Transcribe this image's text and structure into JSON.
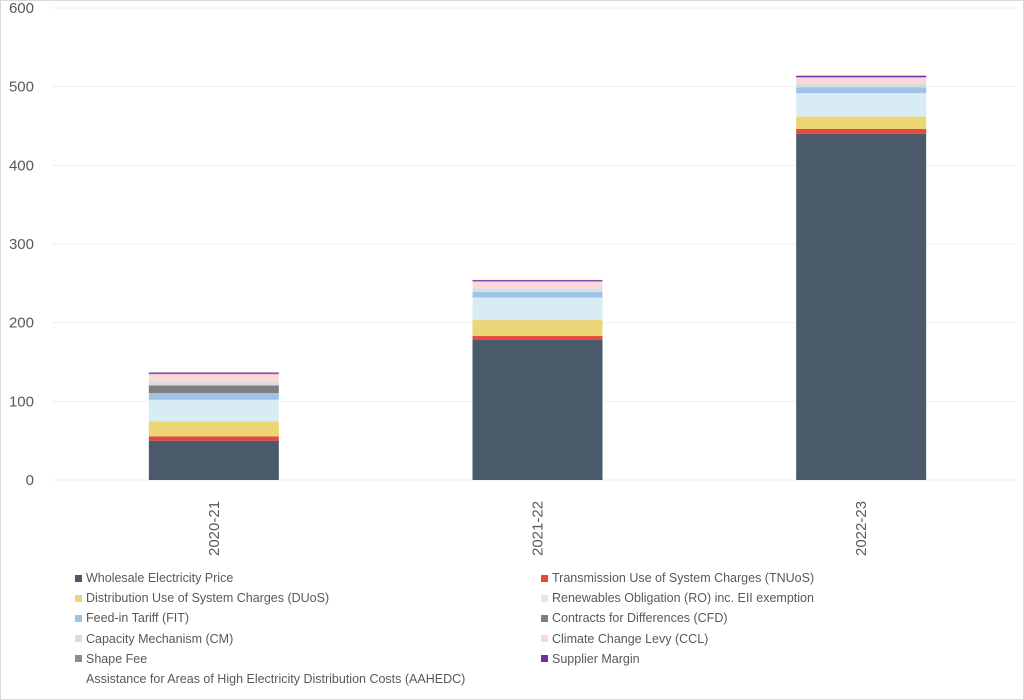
{
  "chart_data": {
    "type": "bar",
    "stacked": true,
    "categories": [
      "2020-21",
      "2021-22",
      "2022-23"
    ],
    "ylim": [
      0,
      600
    ],
    "yticks": [
      0,
      100,
      200,
      300,
      400,
      500,
      600
    ],
    "grid": true,
    "legend_position": "bottom",
    "series": [
      {
        "name": "Wholesale Electricity Price",
        "color": "#4a5a6b",
        "values": [
          50,
          178,
          440
        ]
      },
      {
        "name": "Transmission Use of System Charges (TNUoS)",
        "color": "#e8483a",
        "values": [
          5.5,
          5,
          6.4
        ]
      },
      {
        "name": "Distribution Use of System Charges (DUoS)",
        "color": "#ebd574",
        "values": [
          19,
          20.3,
          15.6
        ]
      },
      {
        "name": "Renewables Obligation (RO) inc. EII exemption",
        "color": "#d9ecf3",
        "values": [
          27.5,
          28.8,
          29.7
        ]
      },
      {
        "name": "Feed-in Tariff (FIT)",
        "color": "#9dc3e6",
        "values": [
          8.5,
          6.8,
          7.6
        ]
      },
      {
        "name": "Contracts for Differences (CFD)",
        "color": "#808080",
        "values": [
          9.7,
          0,
          0
        ]
      },
      {
        "name": "Capacity Mechanism (CM)",
        "color": "#d9dde0",
        "values": [
          5,
          4.7,
          4.2
        ]
      },
      {
        "name": "Climate Change Levy (CCL)",
        "color": "#fbd9d9",
        "values": [
          9.4,
          8.9,
          8.5
        ]
      },
      {
        "name": "Shape Fee",
        "color": "#8c8c8c",
        "values": [
          0.5,
          0.3,
          0.3
        ]
      },
      {
        "name": "Supplier Margin",
        "color": "#7030a0",
        "values": [
          2,
          1.7,
          2
        ]
      },
      {
        "name": "Assistance for Areas of High Electricity Distribution Costs (AAHEDC)",
        "color": "#ffffff",
        "values": [
          0.2,
          0.2,
          0.2
        ]
      }
    ]
  }
}
